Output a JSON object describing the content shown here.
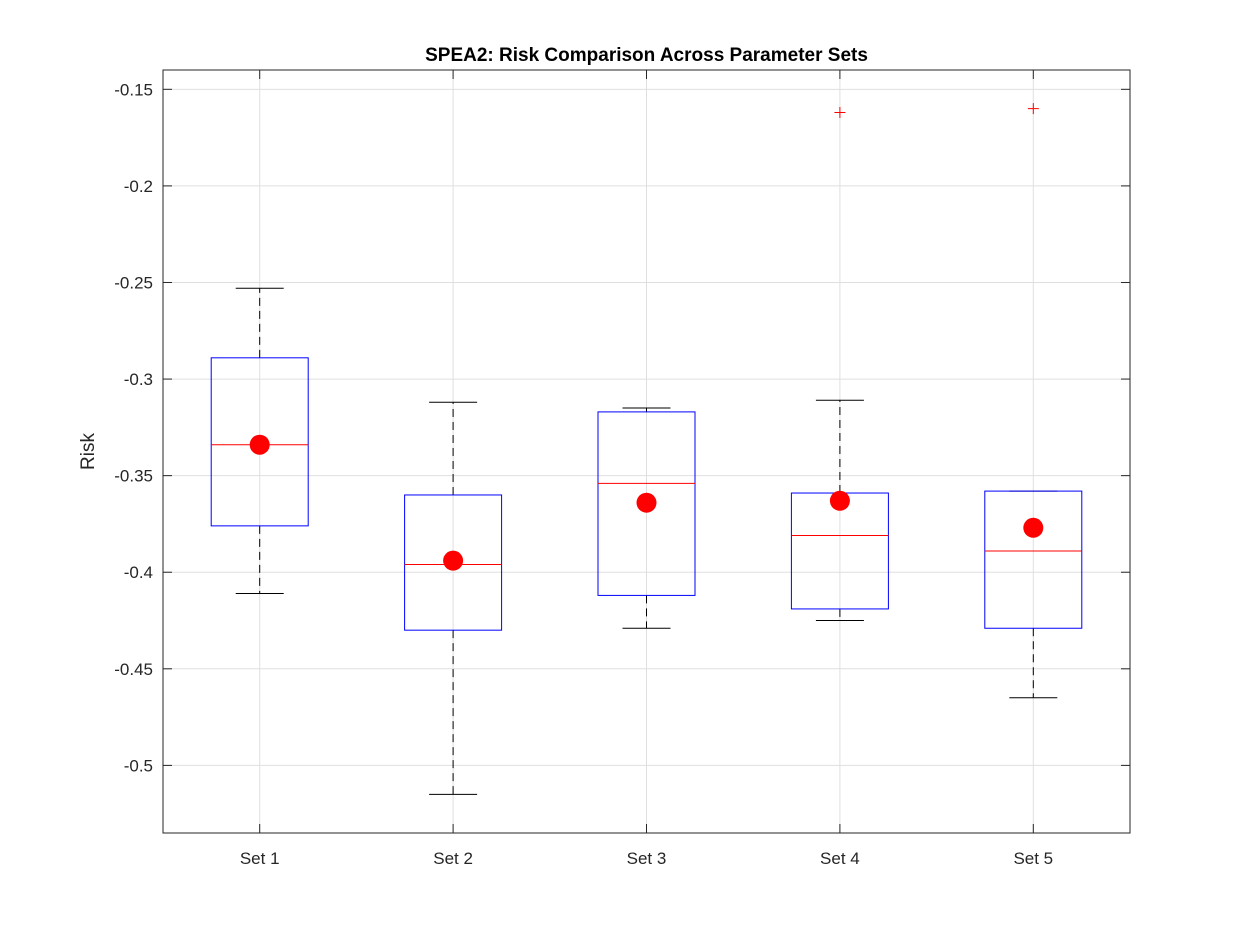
{
  "chart_data": {
    "type": "box",
    "title": "SPEA2: Risk Comparison Across Parameter Sets",
    "xlabel": "",
    "ylabel": "Risk",
    "ylim": [
      -0.535,
      -0.14
    ],
    "yticks": [
      -0.5,
      -0.45,
      -0.4,
      -0.35,
      -0.3,
      -0.25,
      -0.2,
      -0.15
    ],
    "ytick_labels": [
      "-0.5",
      "-0.45",
      "-0.4",
      "-0.35",
      "-0.3",
      "-0.25",
      "-0.2",
      "-0.15"
    ],
    "grid": true,
    "categories": [
      "Set 1",
      "Set 2",
      "Set 3",
      "Set 4",
      "Set 5"
    ],
    "boxes": [
      {
        "whisker_low": -0.411,
        "q1": -0.376,
        "median": -0.334,
        "q3": -0.289,
        "whisker_high": -0.253,
        "mean": -0.334,
        "outliers": []
      },
      {
        "whisker_low": -0.515,
        "q1": -0.43,
        "median": -0.396,
        "q3": -0.36,
        "whisker_high": -0.312,
        "mean": -0.394,
        "outliers": []
      },
      {
        "whisker_low": -0.429,
        "q1": -0.412,
        "median": -0.354,
        "q3": -0.317,
        "whisker_high": -0.315,
        "mean": -0.364,
        "outliers": []
      },
      {
        "whisker_low": -0.425,
        "q1": -0.419,
        "median": -0.381,
        "q3": -0.359,
        "whisker_high": -0.311,
        "mean": -0.363,
        "outliers": [
          -0.162
        ]
      },
      {
        "whisker_low": -0.465,
        "q1": -0.429,
        "median": -0.389,
        "q3": -0.358,
        "whisker_high": -0.358,
        "mean": -0.377,
        "outliers": [
          -0.16
        ]
      }
    ],
    "colors": {
      "box": "#0000ff",
      "median": "#ff0000",
      "whisker": "#000000",
      "mean_marker": "#ff0000",
      "outlier": "#ff0000",
      "grid": "#dfdfdf",
      "axis": "#262626"
    }
  }
}
